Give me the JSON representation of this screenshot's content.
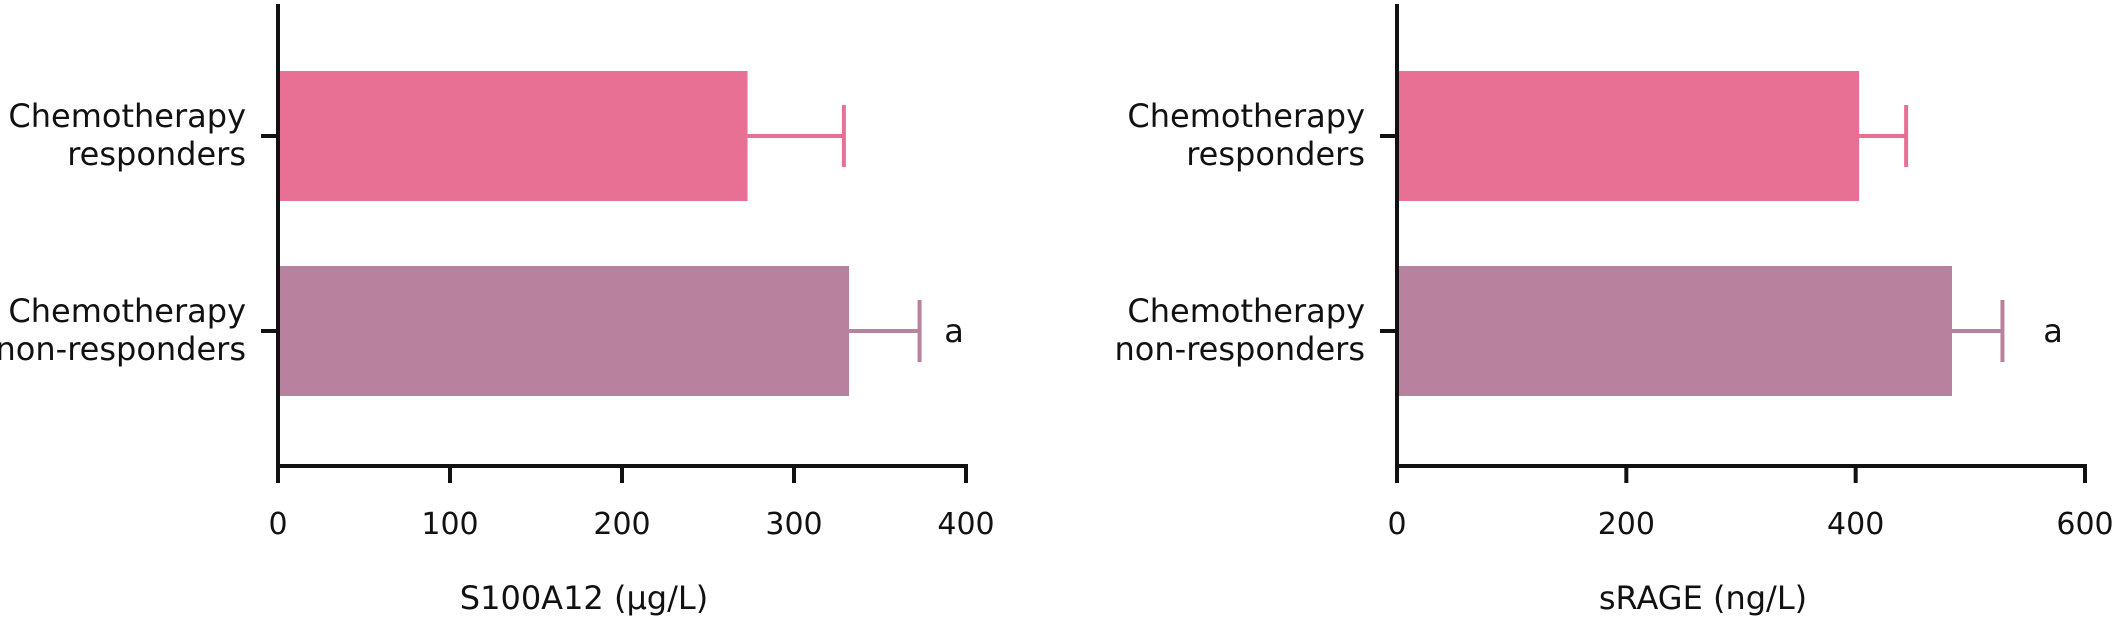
{
  "chart_data": [
    {
      "type": "bar",
      "orientation": "horizontal",
      "categories": [
        [
          "Chemotherapy",
          "responders"
        ],
        [
          "Chemotherapy",
          "non-responders"
        ]
      ],
      "values": [
        273,
        332
      ],
      "errors": [
        56,
        41
      ],
      "annotations": [
        "",
        "a"
      ],
      "colors": [
        "#E87095",
        "#B8829E"
      ],
      "xlabel": "S100A12 (μg/L)",
      "xlim": [
        0,
        400
      ],
      "xticks": [
        0,
        100,
        200,
        300,
        400
      ],
      "grid": false,
      "legend": "none"
    },
    {
      "type": "bar",
      "orientation": "horizontal",
      "categories": [
        [
          "Chemotherapy",
          "responders"
        ],
        [
          "Chemotherapy",
          "non-responders"
        ]
      ],
      "values": [
        403,
        484
      ],
      "errors": [
        41,
        44
      ],
      "annotations": [
        "",
        "a"
      ],
      "colors": [
        "#E87095",
        "#B8829E"
      ],
      "xlabel": "sRAGE (ng/L)",
      "xlim": [
        0,
        600
      ],
      "xticks": [
        0,
        200,
        400,
        600
      ],
      "grid": false,
      "legend": "none"
    }
  ]
}
